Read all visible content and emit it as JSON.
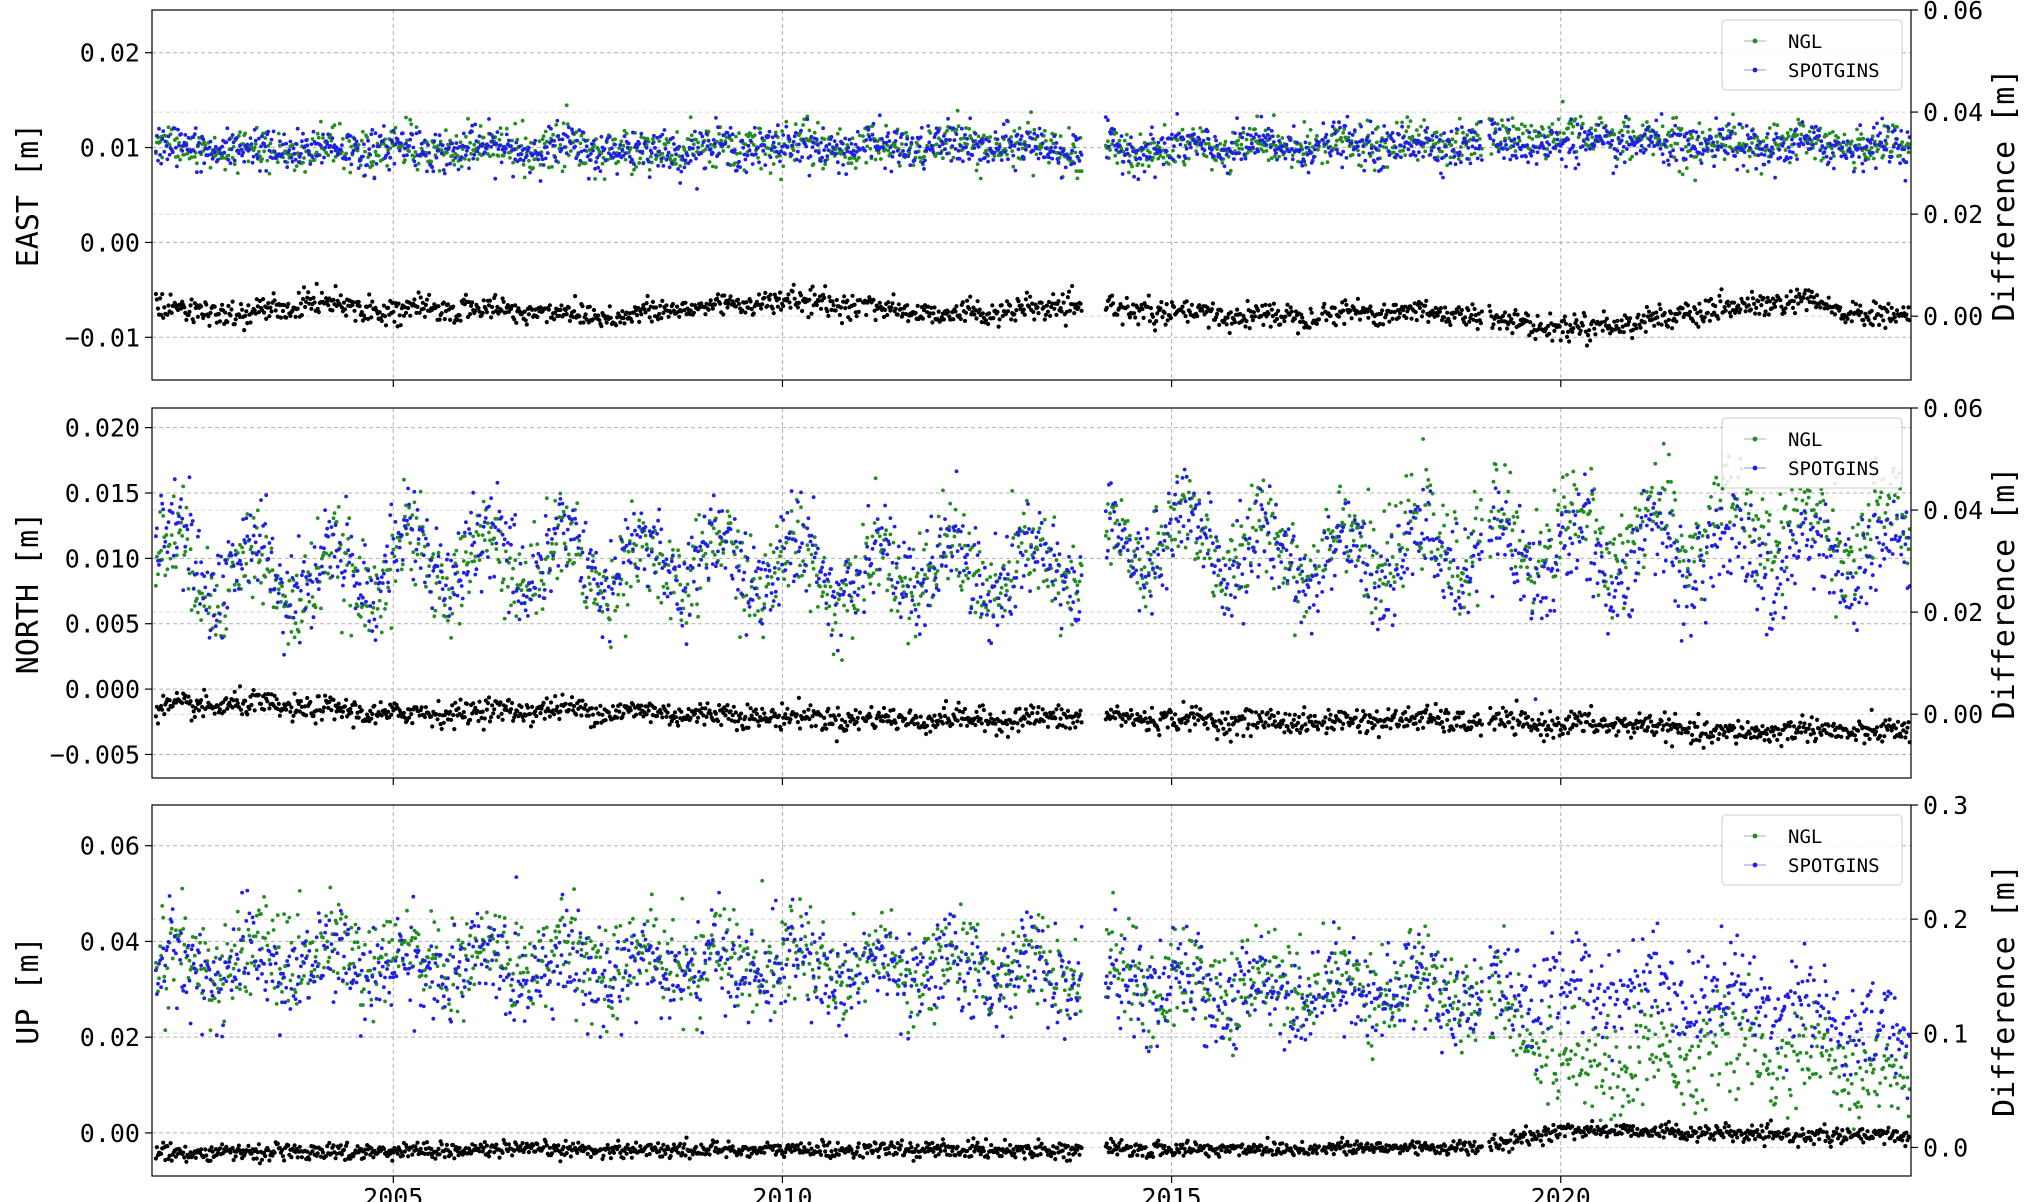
{
  "chart_data": [
    {
      "type": "scatter",
      "panel": "east",
      "ylabel": "EAST [m]",
      "y2label": "Difference [m]",
      "xlim": [
        2001.9,
        2024.5
      ],
      "ylim": [
        -0.0145,
        0.0245
      ],
      "y2lim": [
        -0.0125,
        0.06
      ],
      "yticks": [
        -0.01,
        0.0,
        0.01,
        0.02
      ],
      "ytick_labels": [
        "−0.01",
        "0.00",
        "0.01",
        "0.02"
      ],
      "y2ticks": [
        0.0,
        0.02,
        0.04,
        0.06
      ],
      "y2tick_labels": [
        "0.00",
        "0.02",
        "0.04",
        "0.06"
      ],
      "grid": true,
      "legend": "top-right",
      "series": [
        {
          "name": "NGL",
          "color": "#228b22",
          "axis": "left",
          "x": [
            2002,
            2003,
            2004,
            2005,
            2006,
            2007,
            2008,
            2009,
            2010,
            2011,
            2012,
            2013,
            2014,
            2015,
            2016,
            2017,
            2018,
            2019,
            2020,
            2021,
            2022,
            2023,
            2024
          ],
          "y": [
            0.0105,
            0.0098,
            0.0095,
            0.01,
            0.0098,
            0.01,
            0.0095,
            0.01,
            0.0102,
            0.0098,
            0.0103,
            0.01,
            0.0098,
            0.0097,
            0.01,
            0.0102,
            0.0103,
            0.0108,
            0.0116,
            0.011,
            0.0105,
            0.0106,
            0.0101
          ]
        },
        {
          "name": "SPOTGINS",
          "color": "#1f1fe6",
          "axis": "left",
          "x": [
            2002,
            2003,
            2004,
            2005,
            2006,
            2007,
            2008,
            2009,
            2010,
            2011,
            2012,
            2013,
            2014,
            2015,
            2016,
            2017,
            2018,
            2019,
            2020,
            2021,
            2022,
            2023,
            2024
          ],
          "y": [
            0.0102,
            0.0097,
            0.0098,
            0.01,
            0.0097,
            0.01,
            0.0097,
            0.0098,
            0.0102,
            0.01,
            0.0102,
            0.01,
            0.0098,
            0.01,
            0.01,
            0.0102,
            0.0102,
            0.0105,
            0.0102,
            0.0103,
            0.01,
            0.01,
            0.0102
          ]
        },
        {
          "name": "Difference",
          "color": "#000000",
          "axis": "right",
          "x": [
            2002,
            2003,
            2004,
            2005,
            2006,
            2007,
            2008,
            2009,
            2010,
            2011,
            2012,
            2013,
            2014,
            2015,
            2016,
            2017,
            2018,
            2019,
            2020,
            2021,
            2022,
            2023,
            2024
          ],
          "y": [
            0.002,
            0.0,
            0.003,
            0.001,
            0.0015,
            0.0008,
            0.0,
            0.002,
            0.003,
            0.002,
            0.0005,
            0.001,
            0.002,
            0.0005,
            0.0,
            0.0005,
            0.001,
            0.0,
            -0.0025,
            -0.001,
            0.001,
            0.003,
            0.0
          ]
        }
      ]
    },
    {
      "type": "scatter",
      "panel": "north",
      "ylabel": "NORTH [m]",
      "y2label": "Difference [m]",
      "xlim": [
        2001.9,
        2024.5
      ],
      "ylim": [
        -0.0068,
        0.0215
      ],
      "y2lim": [
        -0.0125,
        0.06
      ],
      "yticks": [
        -0.005,
        0.0,
        0.005,
        0.01,
        0.015,
        0.02
      ],
      "ytick_labels": [
        "−0.005",
        "0.000",
        "0.005",
        "0.010",
        "0.015",
        "0.020"
      ],
      "y2ticks": [
        0.0,
        0.02,
        0.04,
        0.06
      ],
      "y2tick_labels": [
        "0.00",
        "0.02",
        "0.04",
        "0.06"
      ],
      "grid": true,
      "legend": "top-right",
      "series": [
        {
          "name": "NGL",
          "color": "#228b22",
          "axis": "left",
          "x": [
            2002,
            2003,
            2004,
            2005,
            2006,
            2007,
            2008,
            2009,
            2010,
            2011,
            2012,
            2013,
            2014,
            2015,
            2016,
            2017,
            2018,
            2019,
            2020,
            2021,
            2022,
            2023,
            2024
          ],
          "y": [
            0.0095,
            0.0085,
            0.008,
            0.0095,
            0.0095,
            0.0098,
            0.009,
            0.0095,
            0.0092,
            0.009,
            0.0092,
            0.009,
            0.0095,
            0.012,
            0.0105,
            0.011,
            0.0112,
            0.0115,
            0.012,
            0.012,
            0.013,
            0.0125,
            0.012
          ]
        },
        {
          "name": "SPOTGINS",
          "color": "#1f1fe6",
          "axis": "left",
          "x": [
            2002,
            2003,
            2004,
            2005,
            2006,
            2007,
            2008,
            2009,
            2010,
            2011,
            2012,
            2013,
            2014,
            2015,
            2016,
            2017,
            2018,
            2019,
            2020,
            2021,
            2022,
            2023,
            2024
          ],
          "y": [
            0.0105,
            0.0095,
            0.0085,
            0.01,
            0.01,
            0.0105,
            0.0095,
            0.01,
            0.0095,
            0.0092,
            0.0095,
            0.0092,
            0.0095,
            0.012,
            0.01,
            0.01,
            0.0098,
            0.01,
            0.01,
            0.0102,
            0.01,
            0.01,
            0.01
          ]
        },
        {
          "name": "Difference",
          "color": "#000000",
          "axis": "right",
          "x": [
            2002,
            2003,
            2004,
            2005,
            2006,
            2007,
            2008,
            2009,
            2010,
            2011,
            2012,
            2013,
            2014,
            2015,
            2016,
            2017,
            2018,
            2019,
            2020,
            2021,
            2022,
            2023,
            2024
          ],
          "y": [
            0.001,
            0.002,
            0.001,
            0.0,
            0.0005,
            0.001,
            0.0005,
            0.0,
            -0.0005,
            -0.001,
            -0.001,
            -0.001,
            -0.0005,
            -0.001,
            -0.0015,
            -0.0015,
            -0.001,
            -0.0015,
            -0.002,
            -0.002,
            -0.004,
            -0.003,
            -0.0035
          ]
        }
      ]
    },
    {
      "type": "scatter",
      "panel": "up",
      "ylabel": "UP [m]",
      "y2label": "Difference [m]",
      "xlim": [
        2001.9,
        2024.5
      ],
      "ylim": [
        -0.009,
        0.0685
      ],
      "y2lim": [
        -0.025,
        0.3
      ],
      "yticks": [
        0.0,
        0.02,
        0.04,
        0.06
      ],
      "ytick_labels": [
        "0.00",
        "0.02",
        "0.04",
        "0.06"
      ],
      "y2ticks": [
        0.0,
        0.1,
        0.2,
        0.3
      ],
      "y2tick_labels": [
        "0.0",
        "0.1",
        "0.2",
        "0.3"
      ],
      "grid": true,
      "legend": "top-right",
      "series": [
        {
          "name": "NGL",
          "color": "#228b22",
          "axis": "left",
          "x": [
            2002,
            2003,
            2004,
            2005,
            2006,
            2007,
            2008,
            2009,
            2010,
            2011,
            2012,
            2013,
            2014,
            2015,
            2016,
            2017,
            2018,
            2019,
            2020,
            2021,
            2022,
            2023,
            2024
          ],
          "y": [
            0.037,
            0.036,
            0.037,
            0.036,
            0.036,
            0.037,
            0.036,
            0.036,
            0.037,
            0.035,
            0.035,
            0.036,
            0.034,
            0.031,
            0.03,
            0.031,
            0.031,
            0.03,
            0.015,
            0.015,
            0.018,
            0.015,
            0.012
          ]
        },
        {
          "name": "SPOTGINS",
          "color": "#1f1fe6",
          "axis": "left",
          "x": [
            2002,
            2003,
            2004,
            2005,
            2006,
            2007,
            2008,
            2009,
            2010,
            2011,
            2012,
            2013,
            2014,
            2015,
            2016,
            2017,
            2018,
            2019,
            2020,
            2021,
            2022,
            2023,
            2024
          ],
          "y": [
            0.035,
            0.034,
            0.035,
            0.034,
            0.034,
            0.035,
            0.034,
            0.034,
            0.035,
            0.033,
            0.033,
            0.034,
            0.032,
            0.03,
            0.029,
            0.03,
            0.03,
            0.029,
            0.03,
            0.031,
            0.029,
            0.028,
            0.02
          ]
        },
        {
          "name": "Difference",
          "color": "#000000",
          "axis": "right",
          "x": [
            2002,
            2003,
            2004,
            2005,
            2006,
            2007,
            2008,
            2009,
            2010,
            2011,
            2012,
            2013,
            2014,
            2015,
            2016,
            2017,
            2018,
            2019,
            2020,
            2021,
            2022,
            2023,
            2024
          ],
          "y": [
            -0.005,
            -0.004,
            -0.004,
            -0.003,
            -0.002,
            -0.002,
            -0.002,
            -0.002,
            -0.002,
            -0.002,
            -0.002,
            -0.002,
            -0.002,
            -0.002,
            -0.001,
            -0.001,
            0.0,
            0.0,
            0.015,
            0.015,
            0.012,
            0.01,
            0.01
          ]
        }
      ]
    }
  ],
  "xaxis": {
    "ticks": [
      2005,
      2010,
      2015,
      2020
    ],
    "tick_labels": [
      "2005",
      "2010",
      "2015",
      "2020"
    ]
  },
  "legend_labels": [
    "NGL",
    "SPOTGINS"
  ]
}
